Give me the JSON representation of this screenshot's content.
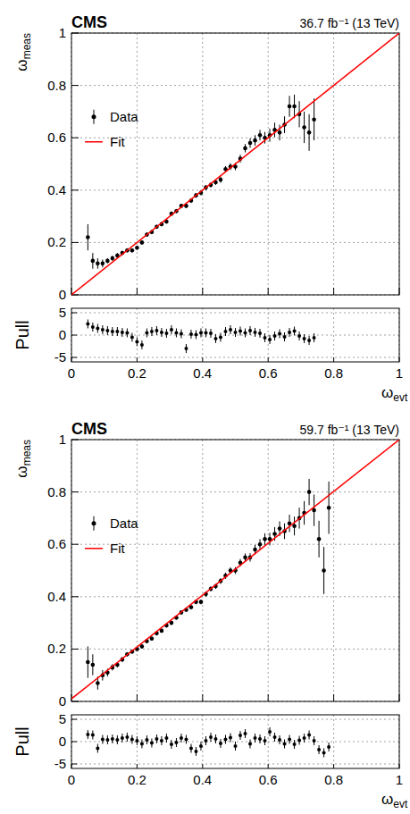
{
  "chart_data": [
    {
      "type": "scatter",
      "title": "CMS",
      "subtitle": "36.7 fb⁻¹ (13 TeV)",
      "x_label": "ωevt",
      "y_label": "ωmeas",
      "xlim": [
        0,
        1
      ],
      "xticks": [
        0,
        0.2,
        0.4,
        0.6,
        0.8,
        1
      ],
      "ylim": [
        0,
        1
      ],
      "yticks": [
        0,
        0.2,
        0.4,
        0.6,
        0.8,
        1
      ],
      "grid": true,
      "legend": "top left",
      "series": [
        {
          "name": "Data",
          "type": "scatter",
          "color": "#000000",
          "marker": "circle",
          "x": [
            0.05,
            0.065,
            0.08,
            0.095,
            0.11,
            0.125,
            0.14,
            0.155,
            0.17,
            0.185,
            0.2,
            0.215,
            0.23,
            0.245,
            0.26,
            0.275,
            0.29,
            0.305,
            0.32,
            0.335,
            0.35,
            0.365,
            0.38,
            0.395,
            0.41,
            0.425,
            0.44,
            0.455,
            0.47,
            0.485,
            0.5,
            0.515,
            0.53,
            0.545,
            0.56,
            0.575,
            0.59,
            0.605,
            0.62,
            0.635,
            0.65,
            0.665,
            0.68,
            0.695,
            0.71,
            0.725,
            0.74
          ],
          "values": [
            0.22,
            0.13,
            0.12,
            0.12,
            0.13,
            0.14,
            0.15,
            0.16,
            0.17,
            0.17,
            0.18,
            0.2,
            0.23,
            0.24,
            0.26,
            0.27,
            0.28,
            0.31,
            0.32,
            0.34,
            0.34,
            0.36,
            0.38,
            0.39,
            0.41,
            0.42,
            0.43,
            0.44,
            0.48,
            0.49,
            0.49,
            0.52,
            0.56,
            0.58,
            0.59,
            0.61,
            0.6,
            0.61,
            0.63,
            0.62,
            0.65,
            0.72,
            0.72,
            0.69,
            0.64,
            0.62,
            0.67
          ],
          "errors": [
            0.05,
            0.03,
            0.02,
            0.015,
            0.01,
            0.01,
            0.01,
            0.008,
            0.008,
            0.008,
            0.008,
            0.008,
            0.008,
            0.008,
            0.008,
            0.008,
            0.008,
            0.008,
            0.008,
            0.008,
            0.008,
            0.009,
            0.009,
            0.01,
            0.01,
            0.01,
            0.01,
            0.012,
            0.012,
            0.013,
            0.014,
            0.015,
            0.016,
            0.018,
            0.02,
            0.02,
            0.022,
            0.025,
            0.028,
            0.03,
            0.032,
            0.04,
            0.045,
            0.05,
            0.06,
            0.07,
            0.08
          ]
        },
        {
          "name": "Fit",
          "type": "line",
          "color": "#ff0000",
          "line_style": "solid",
          "x": [
            0,
            1
          ],
          "values": [
            0,
            1
          ]
        }
      ],
      "pull": {
        "y_label": "Pull",
        "ylim": [
          -6,
          6
        ],
        "yticks": [
          -5,
          0,
          5
        ],
        "error": 1,
        "values": [
          2.5,
          1.8,
          1.5,
          1.2,
          1,
          0.8,
          0.8,
          0.6,
          0.5,
          -0.5,
          -1.5,
          -2.2,
          0.5,
          0.8,
          1,
          0.6,
          0.4,
          1.2,
          0.5,
          0.3,
          -3,
          0.2,
          0.1,
          0.5,
          0.5,
          0.4,
          -0.8,
          -0.5,
          0.8,
          1.2,
          0.6,
          0.9,
          0.5,
          1,
          0.6,
          0.4,
          -0.6,
          -1,
          -0.2,
          0.3,
          -0.4,
          0.6,
          0.9,
          -0.2,
          -0.8,
          -1.2,
          -0.6
        ]
      }
    },
    {
      "type": "scatter",
      "title": "CMS",
      "subtitle": "59.7 fb⁻¹ (13 TeV)",
      "x_label": "ωevt",
      "y_label": "ωmeas",
      "xlim": [
        0,
        1
      ],
      "xticks": [
        0,
        0.2,
        0.4,
        0.6,
        0.8,
        1
      ],
      "ylim": [
        0,
        1
      ],
      "yticks": [
        0,
        0.2,
        0.4,
        0.6,
        0.8,
        1
      ],
      "grid": true,
      "legend": "top left",
      "series": [
        {
          "name": "Data",
          "type": "scatter",
          "color": "#000000",
          "marker": "circle",
          "x": [
            0.05,
            0.065,
            0.08,
            0.095,
            0.11,
            0.125,
            0.14,
            0.155,
            0.17,
            0.185,
            0.2,
            0.215,
            0.23,
            0.245,
            0.26,
            0.275,
            0.29,
            0.305,
            0.32,
            0.335,
            0.35,
            0.365,
            0.38,
            0.395,
            0.41,
            0.425,
            0.44,
            0.455,
            0.47,
            0.485,
            0.5,
            0.515,
            0.53,
            0.545,
            0.56,
            0.575,
            0.59,
            0.605,
            0.62,
            0.635,
            0.65,
            0.665,
            0.68,
            0.695,
            0.71,
            0.725,
            0.74,
            0.755,
            0.77,
            0.785
          ],
          "values": [
            0.15,
            0.14,
            0.07,
            0.1,
            0.11,
            0.13,
            0.14,
            0.16,
            0.18,
            0.19,
            0.2,
            0.21,
            0.23,
            0.24,
            0.26,
            0.27,
            0.29,
            0.3,
            0.32,
            0.34,
            0.35,
            0.36,
            0.38,
            0.38,
            0.41,
            0.43,
            0.44,
            0.46,
            0.48,
            0.5,
            0.5,
            0.53,
            0.55,
            0.55,
            0.58,
            0.6,
            0.62,
            0.62,
            0.64,
            0.66,
            0.65,
            0.68,
            0.67,
            0.7,
            0.72,
            0.8,
            0.73,
            0.62,
            0.5,
            0.74
          ],
          "errors": [
            0.06,
            0.04,
            0.025,
            0.02,
            0.015,
            0.012,
            0.01,
            0.01,
            0.008,
            0.008,
            0.008,
            0.008,
            0.008,
            0.008,
            0.008,
            0.008,
            0.008,
            0.008,
            0.008,
            0.008,
            0.008,
            0.008,
            0.009,
            0.009,
            0.01,
            0.01,
            0.01,
            0.011,
            0.012,
            0.012,
            0.013,
            0.014,
            0.015,
            0.016,
            0.018,
            0.02,
            0.022,
            0.024,
            0.026,
            0.028,
            0.03,
            0.033,
            0.036,
            0.04,
            0.045,
            0.05,
            0.06,
            0.07,
            0.09,
            0.1
          ]
        },
        {
          "name": "Fit",
          "type": "line",
          "color": "#ff0000",
          "line_style": "solid",
          "x": [
            0,
            1
          ],
          "values": [
            0.01,
            1
          ]
        }
      ],
      "pull": {
        "y_label": "Pull",
        "ylim": [
          -6,
          6
        ],
        "yticks": [
          -5,
          0,
          5
        ],
        "error": 1,
        "values": [
          1.6,
          1.5,
          -1.5,
          0.5,
          0.4,
          0.6,
          0.4,
          0.8,
          1,
          0.5,
          0.2,
          -0.5,
          0.4,
          -0.3,
          0.6,
          0.2,
          0.8,
          -0.6,
          -0.2,
          0.8,
          0.5,
          -1.5,
          -2.2,
          -1,
          0.2,
          1,
          0.6,
          -0.4,
          0.5,
          0.9,
          -1,
          1.4,
          1.8,
          -0.5,
          0.8,
          0.6,
          0.2,
          2.2,
          1,
          0.4,
          -0.5,
          0.5,
          -0.6,
          0.3,
          0.8,
          1.5,
          0.2,
          -1.8,
          -2.5,
          -1.2
        ]
      }
    }
  ]
}
